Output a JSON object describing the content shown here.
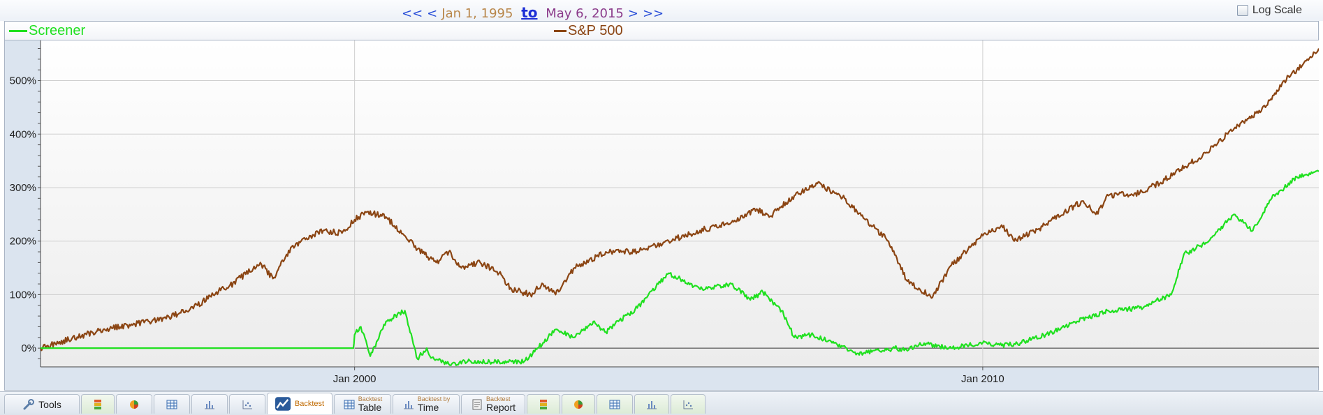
{
  "header": {
    "nav_first": "<<",
    "nav_prev": "<",
    "start_date": "Jan 1, 1995",
    "to_label": "to",
    "end_date": "May 6, 2015",
    "nav_next": ">",
    "nav_last": ">>",
    "log_scale_label": "Log Scale",
    "log_scale_checked": false
  },
  "legend": [
    {
      "name": "Screener",
      "color": "#1fe01f"
    },
    {
      "name": "S&P 500",
      "color": "#8b4513"
    }
  ],
  "tabs": {
    "tools": "Tools",
    "backtest": "Backtest",
    "bt_table_small": "Backtest",
    "bt_table": "Table",
    "bt_time_small": "Backtest by",
    "bt_time": "Time",
    "bt_report_small": "Backtest",
    "bt_report": "Report"
  },
  "chart_data": {
    "type": "line",
    "title": "",
    "xlabel": "",
    "ylabel": "",
    "x_ticks": [
      "Jan 2000",
      "Jan 2010"
    ],
    "y_ticks": [
      "0%",
      "100%",
      "200%",
      "300%",
      "400%",
      "500%"
    ],
    "xlim": [
      1995.0,
      2015.35
    ],
    "ylim": [
      -35,
      575
    ],
    "grid": true,
    "series": [
      {
        "name": "S&P 500",
        "color": "#8b4513",
        "x": [
          1995.0,
          1995.5,
          1996.0,
          1996.5,
          1997.0,
          1997.5,
          1997.8,
          1998.0,
          1998.5,
          1998.7,
          1999.0,
          1999.5,
          1999.8,
          2000.0,
          2000.2,
          2000.5,
          2000.8,
          2001.0,
          2001.3,
          2001.5,
          2001.7,
          2002.0,
          2002.3,
          2002.5,
          2002.8,
          2003.0,
          2003.2,
          2003.5,
          2004.0,
          2004.5,
          2005.0,
          2005.5,
          2006.0,
          2006.4,
          2006.6,
          2007.0,
          2007.4,
          2007.6,
          2007.8,
          2008.0,
          2008.5,
          2008.8,
          2009.0,
          2009.2,
          2009.5,
          2010.0,
          2010.3,
          2010.5,
          2011.0,
          2011.3,
          2011.6,
          2011.8,
          2012.0,
          2012.5,
          2012.9,
          2013.5,
          2014.0,
          2014.5,
          2014.8,
          2015.0,
          2015.35
        ],
        "values": [
          0,
          18,
          35,
          45,
          55,
          80,
          105,
          115,
          160,
          130,
          190,
          220,
          215,
          240,
          255,
          245,
          210,
          185,
          160,
          180,
          150,
          160,
          140,
          110,
          100,
          120,
          100,
          150,
          180,
          180,
          200,
          220,
          235,
          260,
          245,
          285,
          310,
          290,
          280,
          255,
          200,
          125,
          110,
          95,
          155,
          210,
          230,
          200,
          230,
          255,
          275,
          250,
          285,
          290,
          315,
          360,
          410,
          450,
          500,
          520,
          560
        ]
      },
      {
        "name": "Screener",
        "color": "#1fe01f",
        "x": [
          1995.0,
          1999.98,
          2000.0,
          2000.1,
          2000.25,
          2000.5,
          2000.8,
          2001.0,
          2001.15,
          2001.2,
          2001.5,
          2001.8,
          2002.0,
          2002.3,
          2002.5,
          2002.7,
          2003.0,
          2003.2,
          2003.5,
          2003.8,
          2004.0,
          2004.2,
          2004.5,
          2004.8,
          2005.0,
          2005.5,
          2006.0,
          2006.3,
          2006.5,
          2006.8,
          2007.0,
          2007.3,
          2007.6,
          2008.0,
          2008.4,
          2008.6,
          2008.8,
          2009.0,
          2009.5,
          2010.0,
          2010.3,
          2010.6,
          2011.0,
          2011.5,
          2012.0,
          2012.5,
          2013.0,
          2013.2,
          2013.6,
          2014.0,
          2014.3,
          2014.6,
          2015.0,
          2015.35
        ],
        "values": [
          0,
          0,
          25,
          40,
          -15,
          50,
          70,
          -20,
          0,
          -15,
          -30,
          -25,
          -25,
          -25,
          -25,
          -25,
          10,
          35,
          20,
          50,
          30,
          50,
          75,
          115,
          140,
          110,
          120,
          90,
          105,
          70,
          20,
          25,
          10,
          -10,
          -5,
          0,
          -5,
          10,
          0,
          10,
          5,
          10,
          25,
          50,
          70,
          75,
          100,
          175,
          200,
          250,
          220,
          280,
          320,
          330
        ]
      }
    ]
  }
}
